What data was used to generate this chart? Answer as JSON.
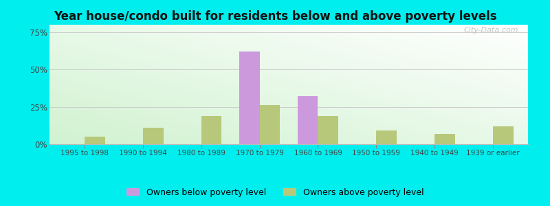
{
  "title": "Year house/condo built for residents below and above poverty levels",
  "categories": [
    "1995 to 1998",
    "1990 to 1994",
    "1980 to 1989",
    "1970 to 1979",
    "1960 to 1969",
    "1950 to 1959",
    "1940 to 1949",
    "1939 or earlier"
  ],
  "below_poverty": [
    0,
    0,
    0,
    62,
    32,
    0,
    0,
    0
  ],
  "above_poverty": [
    5,
    11,
    19,
    26,
    19,
    9,
    7,
    12
  ],
  "below_color": "#cc99dd",
  "above_color": "#b8c87a",
  "ylabel_ticks": [
    0,
    25,
    50,
    75
  ],
  "ylabel_labels": [
    "0%",
    "25%",
    "50%",
    "75%"
  ],
  "ylim": [
    0,
    80
  ],
  "outer_bg": "#00eeee",
  "legend_below": "Owners below poverty level",
  "legend_above": "Owners above poverty level",
  "bar_width": 0.35,
  "title_fontsize": 12,
  "watermark": "City-Data.com"
}
